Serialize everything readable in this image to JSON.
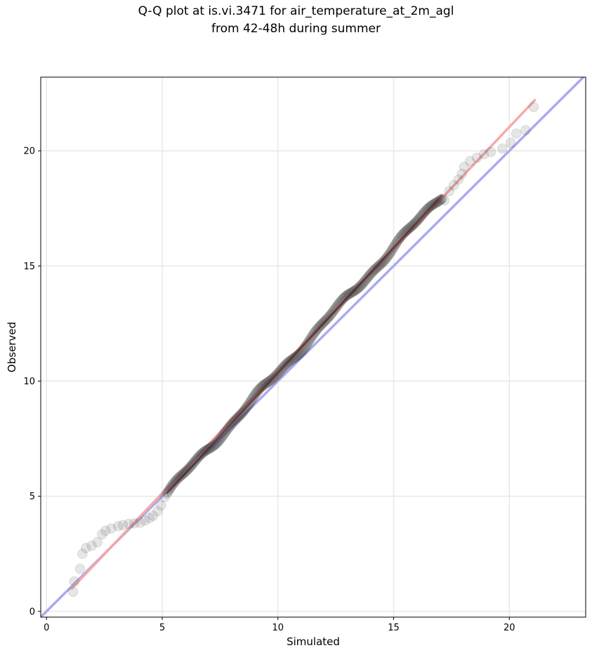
{
  "chart_data": {
    "type": "scatter",
    "title_line1": "Q-Q plot at is.vi.3471 for air_temperature_at_2m_agl",
    "title_line2": "from 42-48h during summer",
    "xlabel": "Simulated",
    "ylabel": "Observed",
    "xlim": [
      -0.25,
      23.3
    ],
    "ylim": [
      -0.25,
      23.2
    ],
    "xticks": [
      0,
      5,
      10,
      15,
      20
    ],
    "yticks": [
      0,
      5,
      10,
      15,
      20
    ],
    "x_tick_labels": [
      "0",
      "5",
      "10",
      "15",
      "20"
    ],
    "y_tick_labels": [
      "0",
      "5",
      "10",
      "15",
      "20"
    ],
    "grid": true,
    "identity_line_color": "#aaaaee",
    "fit_line": {
      "x": [
        1.1,
        21.1
      ],
      "y": [
        1.0,
        22.2
      ],
      "color": "#f4a6a6"
    },
    "core_trend_color": "#b01010",
    "point_color": "#333333",
    "tail_points": [
      [
        1.15,
        0.85
      ],
      [
        1.2,
        1.3
      ],
      [
        1.45,
        1.85
      ],
      [
        1.55,
        2.5
      ],
      [
        1.7,
        2.75
      ],
      [
        1.95,
        2.85
      ],
      [
        2.2,
        3.0
      ],
      [
        2.4,
        3.35
      ],
      [
        2.55,
        3.5
      ],
      [
        2.8,
        3.6
      ],
      [
        3.1,
        3.7
      ],
      [
        3.3,
        3.75
      ],
      [
        3.55,
        3.8
      ],
      [
        3.8,
        3.82
      ],
      [
        4.05,
        3.85
      ],
      [
        4.25,
        3.95
      ],
      [
        4.45,
        4.05
      ],
      [
        4.6,
        4.15
      ],
      [
        4.8,
        4.35
      ],
      [
        4.95,
        4.6
      ],
      [
        5.1,
        4.95
      ],
      [
        17.2,
        17.85
      ],
      [
        17.4,
        18.25
      ],
      [
        17.6,
        18.5
      ],
      [
        17.8,
        18.75
      ],
      [
        17.95,
        19.0
      ],
      [
        18.05,
        19.3
      ],
      [
        18.3,
        19.55
      ],
      [
        18.6,
        19.7
      ],
      [
        18.9,
        19.85
      ],
      [
        19.2,
        19.95
      ],
      [
        19.7,
        20.1
      ],
      [
        20.05,
        20.35
      ],
      [
        20.3,
        20.75
      ],
      [
        20.7,
        20.9
      ],
      [
        21.05,
        21.9
      ]
    ],
    "core_points": {
      "x_start": 5.2,
      "x_end": 17.1,
      "count": 320,
      "slope": 1.09,
      "intercept": -0.55
    }
  }
}
